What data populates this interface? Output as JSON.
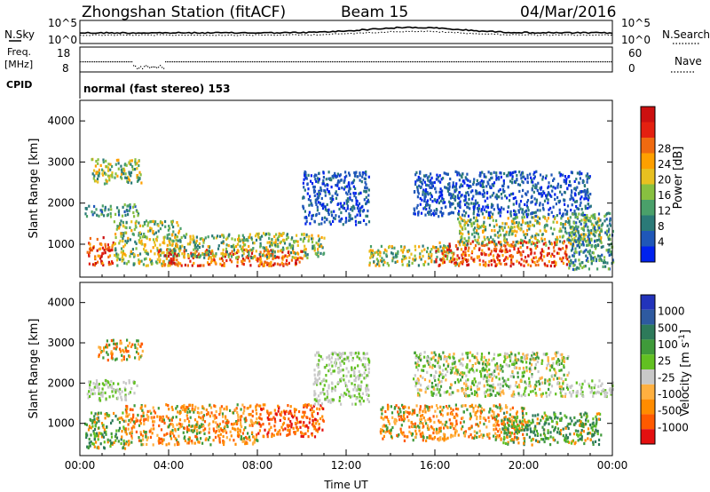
{
  "header": {
    "station": "Zhongshan Station (fitACF)",
    "beam": "Beam 15",
    "date": "04/Mar/2016"
  },
  "nsky_panel": {
    "left_label": "N.Sky",
    "left_ticks": [
      "10^5",
      "10^0"
    ],
    "right_label": "N.Search",
    "right_ticks": [
      "10^5",
      "10^0"
    ]
  },
  "freq_panel": {
    "left_label_1": "Freq.",
    "left_label_2": "[MHz]",
    "left_ticks": [
      "18",
      "8"
    ],
    "right_label": "Nave",
    "right_ticks": [
      "60",
      "0"
    ]
  },
  "cpid_panel": {
    "label": "CPID",
    "text": "normal (fast stereo) 153"
  },
  "chart_data": [
    {
      "type": "heatmap",
      "quantity": "Power",
      "ylabel": "Slant Range [km]",
      "xlabel": "",
      "y_ticks": [
        "1000",
        "2000",
        "3000",
        "4000"
      ],
      "ylim": [
        200,
        4500
      ],
      "colorbar": {
        "label": "Power [dB]",
        "ticks": [
          "4",
          "8",
          "12",
          "16",
          "20",
          "24",
          "28"
        ],
        "colors": [
          "#0022ee",
          "#1f57b8",
          "#2b7a78",
          "#4aa06a",
          "#88c040",
          "#e8c020",
          "#ffa000",
          "#f06a10",
          "#e42010",
          "#cc1010"
        ]
      },
      "regions": [
        {
          "t": [
            0.2,
            2.6
          ],
          "r": [
            1700,
            2000
          ],
          "level": "low-mid"
        },
        {
          "t": [
            0.5,
            2.8
          ],
          "r": [
            2500,
            3100
          ],
          "level": "mid"
        },
        {
          "t": [
            0.3,
            1.5
          ],
          "r": [
            500,
            1200
          ],
          "level": "high"
        },
        {
          "t": [
            1.5,
            4.5
          ],
          "r": [
            500,
            1600
          ],
          "level": "mid"
        },
        {
          "t": [
            3.5,
            10.0
          ],
          "r": [
            500,
            900
          ],
          "level": "high"
        },
        {
          "t": [
            4.0,
            11.0
          ],
          "r": [
            700,
            1300
          ],
          "level": "mid"
        },
        {
          "t": [
            10.0,
            13.0
          ],
          "r": [
            1500,
            2800
          ],
          "level": "low"
        },
        {
          "t": [
            13.0,
            17.0
          ],
          "r": [
            500,
            1000
          ],
          "level": "mid"
        },
        {
          "t": [
            15.0,
            23.0
          ],
          "r": [
            1700,
            2800
          ],
          "level": "low"
        },
        {
          "t": [
            16.0,
            22.0
          ],
          "r": [
            500,
            1100
          ],
          "level": "high"
        },
        {
          "t": [
            17.0,
            23.5
          ],
          "r": [
            1000,
            1700
          ],
          "level": "mid"
        },
        {
          "t": [
            22.0,
            24.0
          ],
          "r": [
            400,
            1800
          ],
          "level": "low-mid"
        }
      ]
    },
    {
      "type": "heatmap",
      "quantity": "Velocity",
      "ylabel": "Slant Range [km]",
      "xlabel": "Time UT",
      "x_ticks": [
        "00:00",
        "04:00",
        "08:00",
        "12:00",
        "16:00",
        "20:00",
        "00:00"
      ],
      "xlim": [
        0,
        24
      ],
      "y_ticks": [
        "1000",
        "2000",
        "3000",
        "4000"
      ],
      "ylim": [
        200,
        4500
      ],
      "colorbar": {
        "label_main": "Velocity [m s",
        "label_sup": "-1",
        "label_end": "]",
        "ticks": [
          "1000",
          "500",
          "100",
          "25",
          "-25",
          "-100",
          "-500",
          "-1000"
        ],
        "colors": [
          "#2233bb",
          "#2e5aa0",
          "#2d7a5a",
          "#3f9a3a",
          "#62c022",
          "#c8c8c8",
          "#ffb040",
          "#ff8c00",
          "#ff5a00",
          "#e41010"
        ]
      },
      "regions": [
        {
          "t": [
            0.3,
            2.6
          ],
          "r": [
            1600,
            2100
          ],
          "level": "gray"
        },
        {
          "t": [
            0.8,
            2.8
          ],
          "r": [
            2600,
            3100
          ],
          "level": "orange"
        },
        {
          "t": [
            0.2,
            2.0
          ],
          "r": [
            400,
            1300
          ],
          "level": "green"
        },
        {
          "t": [
            2.0,
            8.0
          ],
          "r": [
            500,
            1500
          ],
          "level": "orange"
        },
        {
          "t": [
            8.0,
            11.0
          ],
          "r": [
            700,
            1500
          ],
          "level": "red-orange"
        },
        {
          "t": [
            10.5,
            13.0
          ],
          "r": [
            1500,
            2800
          ],
          "level": "gray"
        },
        {
          "t": [
            13.5,
            20.0
          ],
          "r": [
            600,
            1500
          ],
          "level": "orange"
        },
        {
          "t": [
            15.0,
            22.0
          ],
          "r": [
            1700,
            2800
          ],
          "level": "green-gray"
        },
        {
          "t": [
            19.0,
            23.5
          ],
          "r": [
            500,
            1300
          ],
          "level": "green"
        },
        {
          "t": [
            22.0,
            24.0
          ],
          "r": [
            1700,
            2100
          ],
          "level": "gray"
        }
      ]
    }
  ]
}
